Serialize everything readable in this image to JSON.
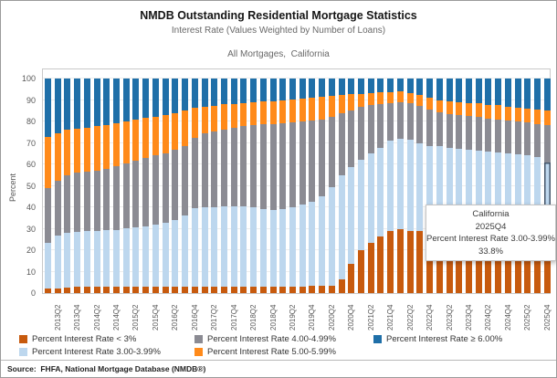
{
  "header": {
    "title": "NMDB Outstanding Residential Mortgage Statistics",
    "subtitle": "Interest Rate (Values Weighted by Number of Loans)",
    "caption": "All Mortgages,  California"
  },
  "source_line": "Source:  FHFA, National Mortgage Database (NMDB®)",
  "tooltip": {
    "line1": "California",
    "line2": "2025Q4",
    "line3": "Percent Interest Rate 3.00-3.99%",
    "line4": "33.8%"
  },
  "colors": {
    "lt3": "#C75A0E",
    "r3": "#BDD7EE",
    "r4": "#8B8B93",
    "r5": "#FF8A1A",
    "ge6": "#1F6FA8",
    "selection_outline": "#44566b"
  },
  "chart_data": {
    "type": "bar",
    "stacked": true,
    "title": "NMDB Outstanding Residential Mortgage Statistics",
    "xlabel": "",
    "ylabel": "Percent",
    "ylim": [
      0,
      100
    ],
    "grid": true,
    "legend_position": "bottom",
    "y_ticks": [
      0,
      10,
      20,
      30,
      40,
      50,
      60,
      70,
      80,
      90,
      100
    ],
    "categories": [
      "2013Q1",
      "2013Q2",
      "2013Q3",
      "2013Q4",
      "2014Q1",
      "2014Q2",
      "2014Q3",
      "2014Q4",
      "2015Q1",
      "2015Q2",
      "2015Q3",
      "2015Q4",
      "2016Q1",
      "2016Q2",
      "2016Q3",
      "2016Q4",
      "2017Q1",
      "2017Q2",
      "2017Q3",
      "2017Q4",
      "2018Q1",
      "2018Q2",
      "2018Q3",
      "2018Q4",
      "2019Q1",
      "2019Q2",
      "2019Q3",
      "2019Q4",
      "2020Q1",
      "2020Q2",
      "2020Q3",
      "2020Q4",
      "2021Q1",
      "2021Q2",
      "2021Q3",
      "2021Q4",
      "2022Q1",
      "2022Q2",
      "2022Q3",
      "2022Q4",
      "2023Q1",
      "2023Q2",
      "2023Q3",
      "2023Q4",
      "2024Q1",
      "2024Q2",
      "2024Q3",
      "2024Q4",
      "2025Q1",
      "2025Q2",
      "2025Q3",
      "2025Q4"
    ],
    "x_tick_labels": [
      "2013Q2",
      "2013Q4",
      "2014Q2",
      "2014Q4",
      "2015Q2",
      "2015Q4",
      "2016Q2",
      "2016Q4",
      "2017Q2",
      "2017Q4",
      "2018Q2",
      "2018Q4",
      "2019Q2",
      "2019Q4",
      "2020Q2",
      "2020Q4",
      "2021Q2",
      "2021Q4",
      "2022Q2",
      "2022Q4",
      "2023Q2",
      "2023Q4",
      "2024Q2",
      "2024Q4",
      "2025Q2",
      "2025Q4"
    ],
    "series": [
      {
        "name": "Percent Interest Rate < 3%",
        "color": "#C75A0E",
        "values": [
          2.1,
          2.3,
          2.6,
          2.8,
          2.8,
          2.8,
          2.8,
          2.8,
          2.8,
          2.8,
          2.8,
          2.8,
          2.8,
          2.8,
          2.8,
          2.8,
          2.8,
          2.8,
          2.8,
          2.8,
          2.8,
          2.8,
          2.8,
          2.8,
          2.9,
          3.0,
          3.1,
          3.2,
          3.3,
          3.6,
          6.5,
          13.8,
          19.9,
          23.3,
          26.2,
          28.8,
          29.7,
          29.1,
          28.8,
          28.4,
          28.0,
          27.8,
          27.5,
          27.3,
          27.2,
          27.1,
          27.0,
          27.0,
          26.9,
          26.9,
          26.9,
          26.9
        ]
      },
      {
        "name": "Percent Interest Rate 3.00-3.99%",
        "color": "#BDD7EE",
        "values": [
          21.2,
          24.6,
          25.4,
          25.8,
          26.0,
          26.2,
          26.4,
          26.7,
          27.2,
          27.7,
          28.4,
          29.0,
          30.0,
          31.2,
          33.2,
          36.7,
          37.2,
          37.4,
          37.6,
          37.6,
          37.5,
          37.1,
          36.5,
          36.0,
          36.1,
          36.8,
          38.1,
          39.5,
          41.6,
          45.6,
          48.4,
          44.8,
          42.3,
          41.8,
          41.5,
          42.1,
          42.3,
          42.5,
          40.9,
          40.3,
          40.3,
          39.9,
          39.6,
          39.3,
          39.0,
          38.7,
          38.4,
          38.2,
          37.8,
          37.3,
          36.6,
          33.8
        ]
      },
      {
        "name": "Percent Interest Rate 4.00-4.99%",
        "color": "#8B8B93",
        "values": [
          25.8,
          25.5,
          26.8,
          27.4,
          27.7,
          28.0,
          28.6,
          29.5,
          30.5,
          31.3,
          31.8,
          32.4,
          32.5,
          32.6,
          32.5,
          33.0,
          34.3,
          35.1,
          35.9,
          36.8,
          37.6,
          38.4,
          39.3,
          40.0,
          40.2,
          39.8,
          38.7,
          37.6,
          36.0,
          33.1,
          28.9,
          26.7,
          24.5,
          22.4,
          20.5,
          17.7,
          17.0,
          17.0,
          17.4,
          16.7,
          15.9,
          15.8,
          15.8,
          15.9,
          15.9,
          15.5,
          15.5,
          15.1,
          15.2,
          15.3,
          15.4,
          17.4
        ]
      },
      {
        "name": "Percent Interest Rate 5.00-5.99%",
        "color": "#FF8A1A",
        "values": [
          23.6,
          22.0,
          21.3,
          20.8,
          20.7,
          20.8,
          20.6,
          20.1,
          19.5,
          19.0,
          18.5,
          18.0,
          17.7,
          17.4,
          16.5,
          14.0,
          12.7,
          12.1,
          11.6,
          11.0,
          10.6,
          10.6,
          10.6,
          10.7,
          10.7,
          10.7,
          10.7,
          10.7,
          10.4,
          9.5,
          8.4,
          7.3,
          6.2,
          5.7,
          5.3,
          5.1,
          5.0,
          4.8,
          5.4,
          5.6,
          5.8,
          6.0,
          6.1,
          6.2,
          6.3,
          6.5,
          6.6,
          6.6,
          6.6,
          6.6,
          6.7,
          6.8
        ]
      },
      {
        "name": "Percent Interest Rate ≥ 6.00%",
        "color": "#1F6FA8",
        "values": [
          27.3,
          25.6,
          23.9,
          23.2,
          22.8,
          22.2,
          21.6,
          20.9,
          20.0,
          19.2,
          18.5,
          17.8,
          17.0,
          16.0,
          15.0,
          13.5,
          13.0,
          12.6,
          12.1,
          11.8,
          11.5,
          11.1,
          10.8,
          10.5,
          10.1,
          9.7,
          9.4,
          9.0,
          8.7,
          8.2,
          7.8,
          7.4,
          7.1,
          6.8,
          6.5,
          6.3,
          6.0,
          6.6,
          7.5,
          9.0,
          10.0,
          10.5,
          11.0,
          11.3,
          11.6,
          12.2,
          12.5,
          13.1,
          13.5,
          13.9,
          14.4,
          15.1
        ]
      }
    ],
    "selected_mark": {
      "category": "2025Q4",
      "series": "Percent Interest Rate 3.00-3.99%",
      "value": "33.8%"
    }
  }
}
